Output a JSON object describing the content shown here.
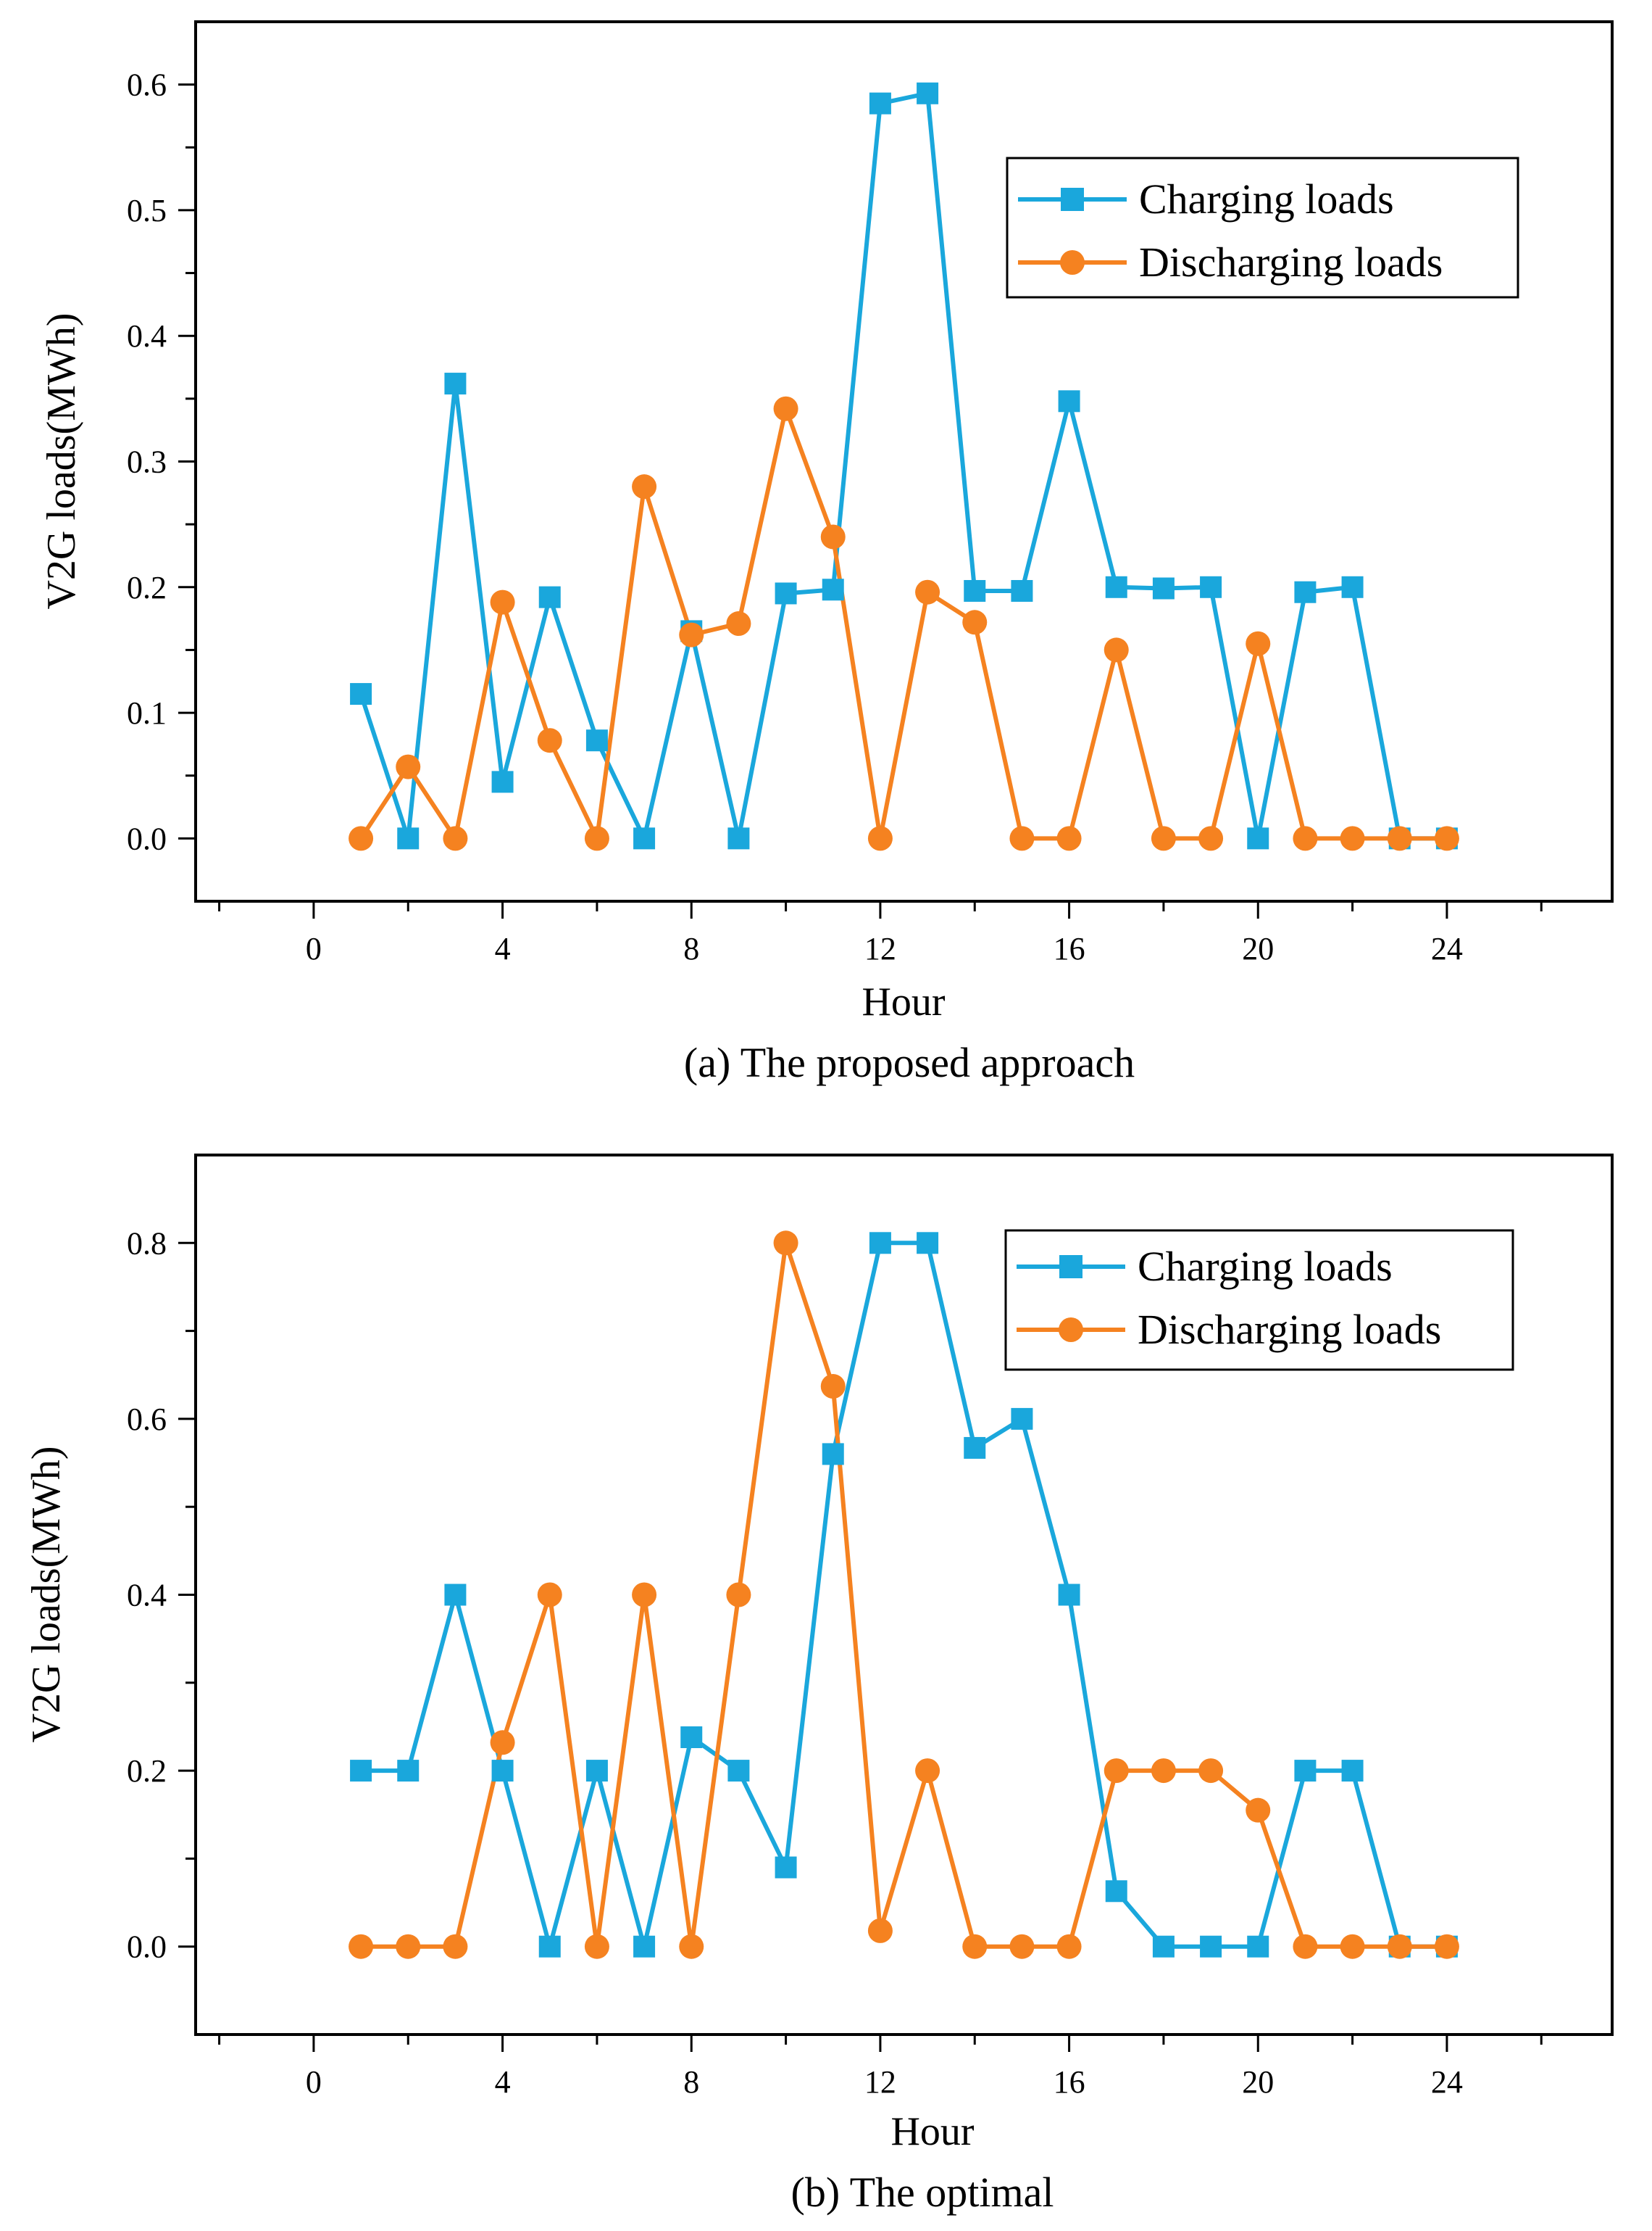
{
  "colors": {
    "charging": "#1aa7dc",
    "discharging": "#f58220",
    "axis": "#000000"
  },
  "chart_data": [
    {
      "type": "line",
      "caption": "(a)  The proposed approach",
      "xlabel": "Hour",
      "ylabel": "V2G loads(MWh)",
      "xlim": [
        -2.5,
        27.5
      ],
      "ylim": [
        -0.05,
        0.65
      ],
      "xticks": [
        0,
        4,
        8,
        12,
        16,
        20,
        24
      ],
      "yticks": [
        0.0,
        0.1,
        0.2,
        0.3,
        0.4,
        0.5,
        0.6
      ],
      "ytick_labels": [
        "0.0",
        "0.1",
        "0.2",
        "0.3",
        "0.4",
        "0.5",
        "0.6"
      ],
      "grid": false,
      "legend_position": "top-right",
      "x": [
        1,
        2,
        3,
        4,
        5,
        6,
        7,
        8,
        9,
        10,
        11,
        12,
        13,
        14,
        15,
        16,
        17,
        18,
        19,
        20,
        21,
        22,
        23,
        24
      ],
      "series": [
        {
          "name": "Charging loads",
          "marker": "square",
          "values": [
            0.115,
            0.0,
            0.362,
            0.045,
            0.192,
            0.078,
            0.0,
            0.165,
            0.0,
            0.195,
            0.198,
            0.585,
            0.593,
            0.197,
            0.197,
            0.348,
            0.2,
            0.199,
            0.2,
            0.0,
            0.196,
            0.2,
            0.0,
            0.0
          ]
        },
        {
          "name": "Discharging loads",
          "marker": "circle",
          "values": [
            0.0,
            0.057,
            0.0,
            0.188,
            0.078,
            0.0,
            0.28,
            0.162,
            0.171,
            0.342,
            0.24,
            0.0,
            0.196,
            0.172,
            0.0,
            0.0,
            0.15,
            0.0,
            0.0,
            0.155,
            0.0,
            0.0,
            0.0,
            0.0
          ]
        }
      ]
    },
    {
      "type": "line",
      "caption": "(b)  The optimal",
      "xlabel": "Hour",
      "ylabel": "V2G loads(MWh)",
      "xlim": [
        -2.5,
        27.5
      ],
      "ylim": [
        -0.1,
        0.9
      ],
      "xticks": [
        0,
        4,
        8,
        12,
        16,
        20,
        24
      ],
      "yticks": [
        0.0,
        0.2,
        0.4,
        0.6,
        0.8
      ],
      "ytick_labels": [
        "0.0",
        "0.2",
        "0.4",
        "0.6",
        "0.8"
      ],
      "grid": false,
      "legend_position": "top-right",
      "x": [
        1,
        2,
        3,
        4,
        5,
        6,
        7,
        8,
        9,
        10,
        11,
        12,
        13,
        14,
        15,
        16,
        17,
        18,
        19,
        20,
        21,
        22,
        23,
        24
      ],
      "series": [
        {
          "name": "Charging loads",
          "marker": "square",
          "values": [
            0.2,
            0.2,
            0.4,
            0.2,
            0.0,
            0.2,
            0.0,
            0.238,
            0.2,
            0.09,
            0.56,
            0.8,
            0.8,
            0.567,
            0.6,
            0.4,
            0.063,
            0.0,
            0.0,
            0.0,
            0.2,
            0.2,
            0.0,
            0.0
          ]
        },
        {
          "name": "Discharging loads",
          "marker": "circle",
          "values": [
            0.0,
            0.0,
            0.0,
            0.232,
            0.4,
            0.0,
            0.4,
            0.0,
            0.4,
            0.8,
            0.637,
            0.018,
            0.2,
            0.0,
            0.0,
            0.0,
            0.2,
            0.2,
            0.2,
            0.155,
            0.0,
            0.0,
            0.0,
            0.0
          ]
        }
      ]
    }
  ]
}
